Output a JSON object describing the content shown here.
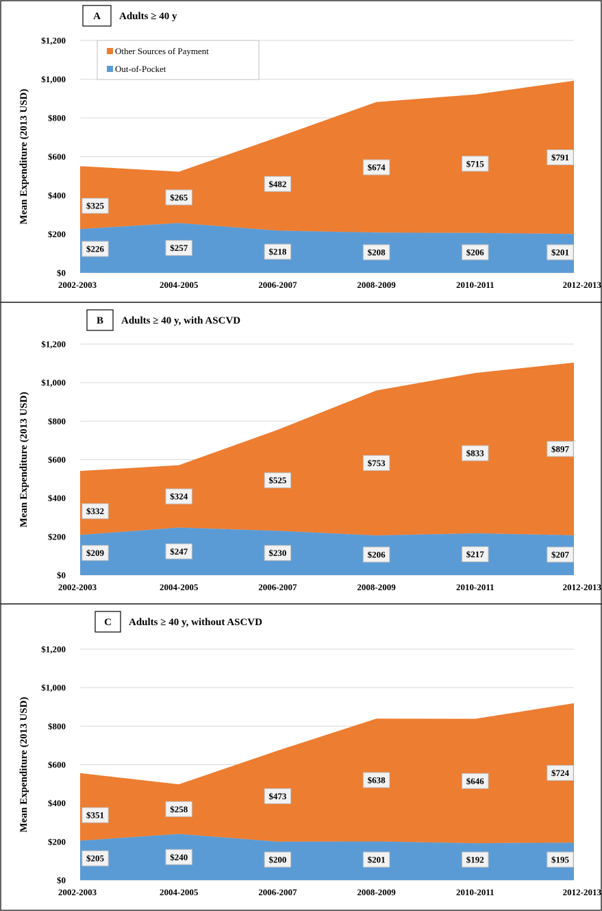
{
  "colors": {
    "other": "#ED7D31",
    "oop": "#5B9BD5"
  },
  "chart_data": [
    {
      "type": "area",
      "stacked": true,
      "panel_letter": "A",
      "title": "Adults ≥ 40 y",
      "ylabel": "Mean Expenditure (2013 USD)",
      "categories": [
        "2002-2003",
        "2004-2005",
        "2006-2007",
        "2008-2009",
        "2010-2011",
        "2012-2013"
      ],
      "ylim": [
        0,
        1200
      ],
      "yticks": [
        0,
        200,
        400,
        600,
        800,
        1000,
        1200
      ],
      "ytick_labels": [
        "$0",
        "$200",
        "$400",
        "$600",
        "$800",
        "$1,000",
        "$1,200"
      ],
      "grid": true,
      "legend": {
        "placement": "top-left",
        "entries": [
          "Other Sources of Payment",
          "Out-of-Pocket"
        ]
      },
      "series": [
        {
          "name": "Out-of-Pocket",
          "values": [
            226,
            257,
            218,
            208,
            206,
            201
          ],
          "labels": [
            "$226",
            "$257",
            "$218",
            "$208",
            "$206",
            "$201"
          ]
        },
        {
          "name": "Other Sources of Payment",
          "values": [
            325,
            265,
            482,
            674,
            715,
            791
          ],
          "labels": [
            "$325",
            "$265",
            "$482",
            "$674",
            "$715",
            "$791"
          ]
        }
      ]
    },
    {
      "type": "area",
      "stacked": true,
      "panel_letter": "B",
      "title": "Adults ≥ 40 y, with ASCVD",
      "ylabel": "Mean Expenditure (2013 USD)",
      "categories": [
        "2002-2003",
        "2004-2005",
        "2006-2007",
        "2008-2009",
        "2010-2011",
        "2012-2013"
      ],
      "ylim": [
        0,
        1200
      ],
      "yticks": [
        0,
        200,
        400,
        600,
        800,
        1000,
        1200
      ],
      "ytick_labels": [
        "$0",
        "$200",
        "$400",
        "$600",
        "$800",
        "$1,000",
        "$1,200"
      ],
      "grid": true,
      "series": [
        {
          "name": "Out-of-Pocket",
          "values": [
            209,
            247,
            230,
            206,
            217,
            207
          ],
          "labels": [
            "$209",
            "$247",
            "$230",
            "$206",
            "$217",
            "$207"
          ]
        },
        {
          "name": "Other Sources of Payment",
          "values": [
            332,
            324,
            525,
            753,
            833,
            897
          ],
          "labels": [
            "$332",
            "$324",
            "$525",
            "$753",
            "$833",
            "$897"
          ]
        }
      ]
    },
    {
      "type": "area",
      "stacked": true,
      "panel_letter": "C",
      "title": "Adults ≥ 40 y, without ASCVD",
      "ylabel": "Mean Expenditure (2013 USD)",
      "categories": [
        "2002-2003",
        "2004-2005",
        "2006-2007",
        "2008-2009",
        "2010-2011",
        "2012-2013"
      ],
      "ylim": [
        0,
        1200
      ],
      "yticks": [
        0,
        200,
        400,
        600,
        800,
        1000,
        1200
      ],
      "ytick_labels": [
        "$0",
        "$200",
        "$400",
        "$600",
        "$800",
        "$1,000",
        "$1,200"
      ],
      "grid": true,
      "series": [
        {
          "name": "Out-of-Pocket",
          "values": [
            205,
            240,
            200,
            201,
            192,
            195
          ],
          "labels": [
            "$205",
            "$240",
            "$200",
            "$201",
            "$192",
            "$195"
          ]
        },
        {
          "name": "Other Sources of Payment",
          "values": [
            351,
            258,
            473,
            638,
            646,
            724
          ],
          "labels": [
            "$351",
            "$258",
            "$473",
            "$638",
            "$646",
            "$724"
          ]
        }
      ]
    }
  ]
}
